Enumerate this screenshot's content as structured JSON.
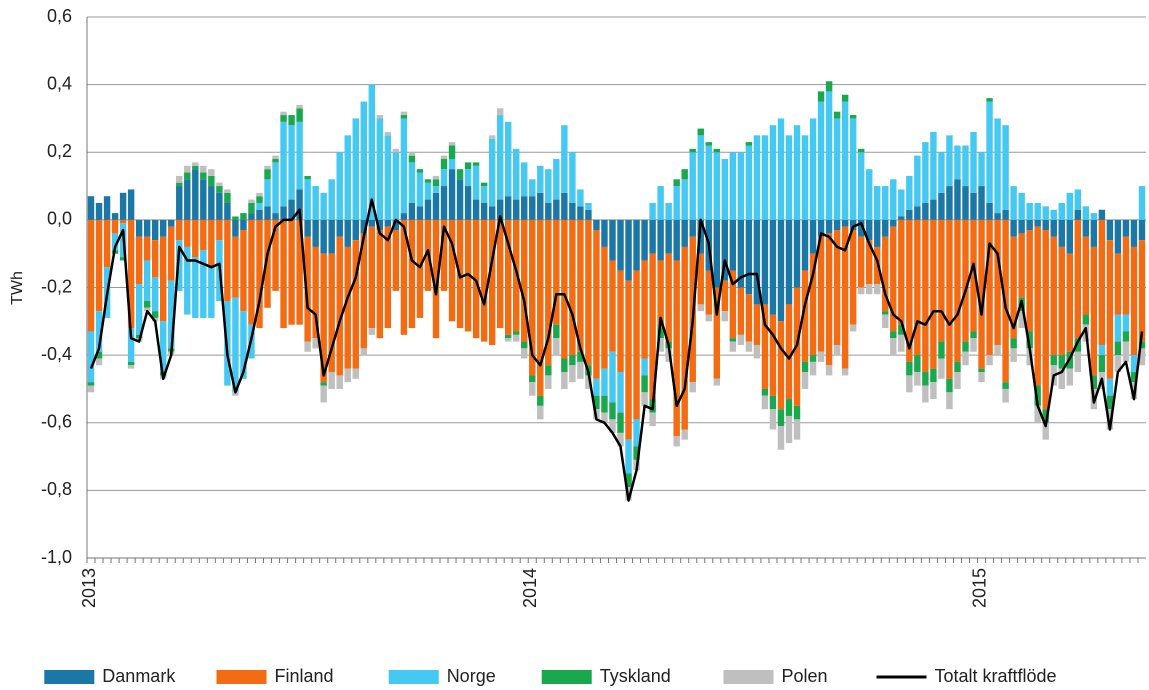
{
  "chart_data": {
    "type": "bar",
    "stacked": true,
    "y_label": "TWh",
    "categories": [
      "2013",
      null,
      null,
      null,
      null,
      null,
      null,
      null,
      null,
      null,
      null,
      null,
      null,
      null,
      null,
      null,
      null,
      null,
      null,
      null,
      null,
      null,
      null,
      null,
      null,
      null,
      null,
      null,
      null,
      null,
      null,
      null,
      null,
      null,
      null,
      null,
      null,
      null,
      null,
      null,
      null,
      null,
      null,
      null,
      null,
      null,
      null,
      null,
      null,
      null,
      null,
      null,
      null,
      null,
      null,
      "2014",
      null,
      null,
      null,
      null,
      null,
      null,
      null,
      null,
      null,
      null,
      null,
      null,
      null,
      null,
      null,
      null,
      null,
      null,
      null,
      null,
      null,
      null,
      null,
      null,
      null,
      null,
      null,
      null,
      null,
      null,
      null,
      null,
      null,
      null,
      null,
      null,
      null,
      null,
      null,
      null,
      null,
      null,
      null,
      null,
      null,
      null,
      null,
      null,
      null,
      null,
      null,
      null,
      null,
      null,
      null,
      "2015",
      null,
      null,
      null,
      null,
      null,
      null,
      null,
      null,
      null,
      null,
      null,
      null,
      null,
      null,
      null,
      null,
      null,
      null,
      null,
      null
    ],
    "series": [
      {
        "name": "Danmark",
        "color": "#1b77a6",
        "kind": "bar",
        "values": [
          0.07,
          0.05,
          0.07,
          0.02,
          0.08,
          0.09,
          -0.05,
          -0.05,
          -0.06,
          -0.05,
          -0.02,
          0.1,
          0.12,
          0.15,
          0.12,
          0.1,
          0.08,
          0.05,
          -0.05,
          -0.03,
          0.02,
          0.03,
          0.04,
          0.02,
          0.04,
          0.06,
          0.09,
          -0.05,
          -0.08,
          -0.1,
          -0.1,
          -0.05,
          -0.08,
          -0.06,
          -0.04,
          -0.02,
          -0.03,
          -0.02,
          -0.03,
          0.02,
          0.05,
          0.04,
          0.06,
          0.08,
          0.1,
          0.15,
          0.12,
          0.1,
          0.06,
          0.05,
          0.04,
          0.06,
          0.07,
          0.06,
          0.07,
          0.07,
          0.08,
          0.05,
          0.06,
          0.08,
          0.05,
          0.04,
          0.03,
          -0.03,
          -0.08,
          -0.12,
          -0.15,
          -0.18,
          -0.15,
          -0.12,
          -0.1,
          -0.12,
          -0.1,
          -0.12,
          -0.08,
          -0.05,
          -0.1,
          -0.15,
          -0.2,
          -0.18,
          -0.15,
          -0.2,
          -0.22,
          -0.25,
          -0.25,
          -0.28,
          -0.3,
          -0.25,
          -0.2,
          -0.15,
          -0.1,
          -0.05,
          -0.04,
          -0.03,
          -0.02,
          -0.03,
          -0.05,
          -0.06,
          -0.08,
          -0.05,
          -0.02,
          0.01,
          0.03,
          0.04,
          0.05,
          0.06,
          0.08,
          0.1,
          0.12,
          0.1,
          0.08,
          0.1,
          0.05,
          0.02,
          0.03,
          -0.05,
          -0.04,
          -0.03,
          -0.02,
          -0.03,
          -0.05,
          -0.08,
          -0.1,
          0.03,
          -0.05,
          -0.08,
          0.03,
          -0.06,
          -0.1,
          -0.05,
          -0.08,
          -0.06
        ]
      },
      {
        "name": "Finland",
        "color": "#f36b12",
        "kind": "bar",
        "values": [
          -0.33,
          -0.27,
          -0.14,
          -0.04,
          -0.01,
          -0.32,
          -0.14,
          -0.07,
          -0.11,
          -0.25,
          -0.16,
          -0.06,
          -0.08,
          -0.11,
          -0.09,
          -0.14,
          -0.06,
          -0.24,
          -0.18,
          -0.24,
          -0.31,
          -0.32,
          -0.26,
          -0.21,
          -0.32,
          -0.31,
          -0.31,
          -0.31,
          -0.27,
          -0.38,
          -0.35,
          -0.41,
          -0.36,
          -0.38,
          -0.34,
          -0.3,
          -0.32,
          -0.3,
          -0.18,
          -0.34,
          -0.32,
          -0.29,
          -0.21,
          -0.35,
          -0.21,
          -0.3,
          -0.32,
          -0.33,
          -0.35,
          -0.36,
          -0.37,
          -0.32,
          -0.34,
          -0.33,
          -0.36,
          -0.46,
          -0.52,
          -0.43,
          -0.31,
          -0.41,
          -0.4,
          -0.39,
          -0.43,
          -0.44,
          -0.36,
          -0.27,
          -0.3,
          -0.47,
          -0.44,
          -0.29,
          -0.43,
          -0.2,
          -0.26,
          -0.52,
          -0.54,
          -0.43,
          -0.15,
          -0.13,
          -0.27,
          -0.09,
          -0.2,
          -0.14,
          -0.14,
          -0.12,
          -0.25,
          -0.24,
          -0.26,
          -0.28,
          -0.35,
          -0.27,
          -0.3,
          -0.34,
          -0.39,
          -0.34,
          -0.42,
          -0.28,
          -0.15,
          -0.13,
          -0.11,
          -0.22,
          -0.31,
          -0.31,
          -0.42,
          -0.4,
          -0.45,
          -0.44,
          -0.36,
          -0.47,
          -0.42,
          -0.36,
          -0.33,
          -0.44,
          -0.4,
          -0.37,
          -0.48,
          -0.3,
          -0.19,
          -0.3,
          -0.47,
          -0.53,
          -0.35,
          -0.32,
          -0.29,
          -0.35,
          -0.23,
          -0.38,
          -0.37,
          -0.41,
          -0.18,
          -0.23,
          -0.32,
          -0.3
        ]
      },
      {
        "name": "Norge",
        "color": "#45c9f2",
        "kind": "bar",
        "values": [
          -0.15,
          -0.12,
          -0.15,
          -0.05,
          -0.1,
          -0.1,
          -0.15,
          -0.12,
          -0.1,
          -0.15,
          -0.2,
          -0.15,
          -0.2,
          -0.18,
          -0.2,
          -0.15,
          -0.18,
          -0.25,
          -0.28,
          -0.2,
          -0.1,
          0.02,
          0.08,
          0.15,
          0.25,
          0.22,
          0.2,
          0.12,
          0.1,
          0.08,
          0.12,
          0.2,
          0.25,
          0.3,
          0.35,
          0.4,
          0.3,
          0.25,
          0.2,
          0.28,
          0.12,
          0.1,
          0.05,
          0.02,
          0.05,
          0.03,
          0,
          0.05,
          0.1,
          0.05,
          0.2,
          0.25,
          0.22,
          0.15,
          0.1,
          0.05,
          0.08,
          0.1,
          0.12,
          0.2,
          0.15,
          0.05,
          0.02,
          -0.05,
          -0.08,
          -0.15,
          -0.12,
          -0.1,
          -0.08,
          -0.05,
          0.05,
          0.1,
          0.05,
          0.1,
          0.12,
          0.2,
          0.25,
          0.22,
          0.2,
          0.18,
          0.2,
          0.2,
          0.22,
          0.25,
          0.25,
          0.28,
          0.3,
          0.25,
          0.28,
          0.25,
          0.3,
          0.35,
          0.38,
          0.3,
          0.35,
          0.3,
          0.2,
          0.15,
          0.1,
          0.1,
          0.12,
          0.08,
          0.1,
          0.15,
          0.18,
          0.2,
          0.12,
          0.15,
          0.1,
          0.12,
          0.18,
          0.1,
          0.3,
          0.28,
          0.25,
          0.1,
          0.08,
          0.05,
          0.05,
          0.04,
          0.03,
          0.05,
          0.08,
          0.06,
          0.04,
          0.02,
          -0.03,
          -0.05,
          -0.08,
          -0.05,
          -0.05,
          0.1
        ]
      },
      {
        "name": "Tyskland",
        "color": "#1aa84f",
        "kind": "bar",
        "values": [
          -0.01,
          -0.02,
          0,
          -0.01,
          -0.01,
          -0.01,
          -0.01,
          -0.02,
          -0.02,
          -0.01,
          -0.01,
          0.01,
          0.02,
          0.01,
          0.02,
          0.03,
          0.02,
          0.03,
          0.01,
          0.02,
          0.03,
          0.02,
          0.03,
          0.01,
          0.02,
          0.03,
          0.04,
          0.01,
          0,
          -0.01,
          0,
          0,
          0,
          0,
          0,
          0,
          0,
          0,
          0,
          0.01,
          0.02,
          0.01,
          0.01,
          0.02,
          0.03,
          0.04,
          0.03,
          0.02,
          0.01,
          0.01,
          0,
          0,
          -0.01,
          -0.01,
          -0.02,
          -0.02,
          -0.03,
          -0.03,
          -0.04,
          -0.04,
          -0.03,
          -0.03,
          -0.03,
          -0.04,
          -0.05,
          -0.05,
          -0.06,
          -0.04,
          -0.04,
          -0.05,
          -0.04,
          -0.03,
          -0.02,
          0.02,
          0.03,
          0.01,
          0.02,
          0.01,
          0.01,
          0,
          -0.01,
          0,
          0.01,
          0,
          -0.02,
          -0.04,
          -0.05,
          -0.05,
          -0.04,
          -0.03,
          -0.02,
          0.03,
          0.03,
          0.02,
          0.02,
          0.01,
          0.01,
          0,
          0,
          -0.01,
          -0.02,
          -0.03,
          -0.04,
          -0.05,
          -0.04,
          -0.04,
          -0.05,
          -0.04,
          -0.03,
          -0.03,
          -0.02,
          -0.01,
          0.01,
          0,
          -0.02,
          -0.03,
          -0.04,
          -0.05,
          -0.06,
          -0.04,
          -0.03,
          -0.04,
          -0.05,
          -0.04,
          -0.03,
          -0.04,
          -0.05,
          -0.04,
          -0.04,
          -0.03,
          -0.03,
          -0.02
        ]
      },
      {
        "name": "Polen",
        "color": "#bfbfbf",
        "kind": "bar",
        "values": [
          -0.02,
          -0.02,
          0,
          0,
          0,
          -0.01,
          -0.01,
          -0.01,
          -0.01,
          -0.01,
          -0.01,
          0.02,
          0.02,
          0.01,
          0.02,
          0.02,
          0.01,
          0.01,
          -0.01,
          0,
          0.01,
          0.01,
          0.01,
          0.01,
          0.01,
          0,
          0.01,
          -0.03,
          -0.03,
          -0.05,
          -0.05,
          -0.04,
          -0.04,
          -0.03,
          -0.02,
          -0.02,
          0.01,
          0.01,
          0.01,
          0.01,
          0.01,
          0,
          0,
          0.01,
          0.01,
          0.01,
          0,
          0,
          0,
          0,
          0.01,
          0.02,
          -0.01,
          -0.02,
          -0.03,
          -0.04,
          -0.04,
          -0.04,
          -0.05,
          -0.05,
          -0.05,
          -0.05,
          -0.04,
          -0.03,
          -0.03,
          -0.04,
          -0.04,
          -0.04,
          -0.03,
          -0.04,
          -0.04,
          -0.04,
          -0.04,
          -0.03,
          -0.03,
          -0.03,
          -0.02,
          -0.02,
          -0.02,
          -0.03,
          -0.03,
          -0.03,
          -0.03,
          -0.04,
          -0.04,
          -0.06,
          -0.07,
          -0.08,
          -0.06,
          -0.05,
          -0.04,
          -0.03,
          -0.03,
          -0.03,
          -0.02,
          -0.02,
          -0.02,
          -0.03,
          -0.03,
          -0.04,
          -0.05,
          -0.05,
          -0.05,
          -0.04,
          -0.05,
          -0.05,
          -0.06,
          -0.05,
          -0.05,
          -0.04,
          -0.04,
          -0.03,
          -0.03,
          -0.03,
          -0.04,
          -0.04,
          -0.05,
          -0.05,
          -0.05,
          -0.05,
          -0.06,
          -0.06,
          -0.05,
          -0.06,
          -0.05,
          -0.06,
          -0.05,
          -0.06,
          -0.05,
          -0.06,
          -0.05,
          -0.05
        ]
      },
      {
        "name": "Totalt kraftflöde",
        "color": "#000000",
        "kind": "line",
        "values": [
          -0.44,
          -0.38,
          -0.22,
          -0.08,
          -0.03,
          -0.35,
          -0.36,
          -0.27,
          -0.3,
          -0.47,
          -0.4,
          -0.08,
          -0.12,
          -0.12,
          -0.13,
          -0.14,
          -0.13,
          -0.4,
          -0.51,
          -0.45,
          -0.35,
          -0.24,
          -0.1,
          -0.02,
          0,
          0,
          0.03,
          -0.26,
          -0.28,
          -0.46,
          -0.38,
          -0.3,
          -0.23,
          -0.17,
          -0.05,
          0.06,
          -0.04,
          -0.06,
          0,
          -0.02,
          -0.12,
          -0.14,
          -0.09,
          -0.22,
          -0.02,
          -0.07,
          -0.17,
          -0.16,
          -0.18,
          -0.25,
          -0.12,
          0.01,
          -0.07,
          -0.15,
          -0.24,
          -0.4,
          -0.43,
          -0.35,
          -0.22,
          -0.22,
          -0.28,
          -0.38,
          -0.45,
          -0.59,
          -0.6,
          -0.63,
          -0.67,
          -0.83,
          -0.74,
          -0.55,
          -0.56,
          -0.29,
          -0.37,
          -0.55,
          -0.5,
          -0.3,
          0,
          -0.07,
          -0.28,
          -0.12,
          -0.19,
          -0.17,
          -0.16,
          -0.16,
          -0.31,
          -0.34,
          -0.38,
          -0.41,
          -0.37,
          -0.25,
          -0.16,
          -0.04,
          -0.05,
          -0.08,
          -0.09,
          -0.02,
          -0.01,
          -0.07,
          -0.12,
          -0.22,
          -0.28,
          -0.3,
          -0.38,
          -0.3,
          -0.31,
          -0.27,
          -0.27,
          -0.31,
          -0.28,
          -0.21,
          -0.13,
          -0.28,
          -0.07,
          -0.1,
          -0.26,
          -0.32,
          -0.24,
          -0.38,
          -0.55,
          -0.61,
          -0.46,
          -0.45,
          -0.41,
          -0.36,
          -0.32,
          -0.54,
          -0.47,
          -0.62,
          -0.45,
          -0.42,
          -0.53,
          -0.33
        ]
      }
    ],
    "ylim": [
      -1.0,
      0.6
    ],
    "yticks": [
      {
        "value": -1.0,
        "label": "-1,0"
      },
      {
        "value": -0.8,
        "label": "-0,8"
      },
      {
        "value": -0.6,
        "label": "-0,6"
      },
      {
        "value": -0.4,
        "label": "-0,4"
      },
      {
        "value": -0.2,
        "label": "-0,2"
      },
      {
        "value": 0.0,
        "label": "0,0"
      },
      {
        "value": 0.2,
        "label": "0,2"
      },
      {
        "value": 0.4,
        "label": "0,4"
      },
      {
        "value": 0.6,
        "label": "0,6"
      }
    ],
    "grid": true,
    "legend": "bottom"
  }
}
